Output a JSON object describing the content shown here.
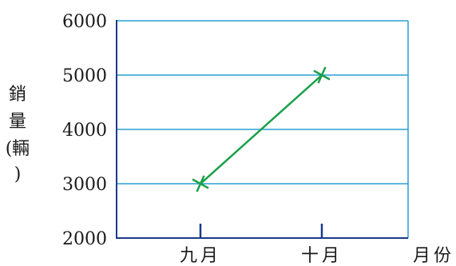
{
  "chart_data": {
    "type": "line",
    "categories": [
      "九月",
      "十月"
    ],
    "series": [
      {
        "values": [
          3000,
          5000
        ]
      }
    ],
    "ylabel": [
      "銷",
      "量",
      "(",
      "輛",
      ")"
    ],
    "xlabel": "月份",
    "ylim": [
      2000,
      6000
    ],
    "yticks": [
      "2000",
      "3000",
      "4000",
      "5000",
      "6000"
    ],
    "grid": true
  },
  "colors": {
    "axis": "#1a3a8a",
    "grid": "#2a9fd6",
    "line": "#1aa04a",
    "text": "#1a1a1a"
  }
}
